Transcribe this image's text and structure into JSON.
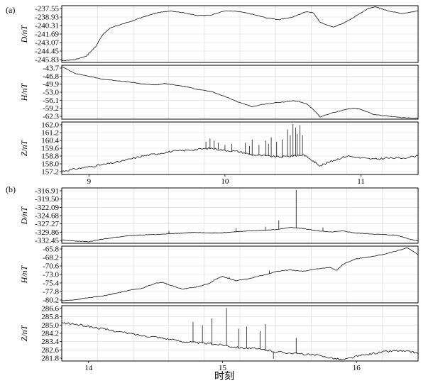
{
  "figure": {
    "x_axis_label": "时刻"
  },
  "chart_data": [
    {
      "type": "line",
      "group_label": "(a)",
      "x_ticks": [
        "9",
        "10",
        "11"
      ],
      "xlim": [
        8.8,
        11.42
      ],
      "panels": [
        {
          "ylabel": "D/nT",
          "y_ticks": [
            "-237.55",
            "-238.93",
            "-240.31",
            "-241.69",
            "-243.07",
            "-244.45",
            "-245.83"
          ],
          "ylim": [
            -245.83,
            -237.55
          ],
          "series": [
            {
              "x": [
                8.8,
                8.9,
                8.98,
                9.05,
                9.1,
                9.15,
                9.2,
                9.3,
                9.4,
                9.5,
                9.6,
                9.7,
                9.8,
                9.9,
                10.0,
                10.1,
                10.2,
                10.3,
                10.4,
                10.5,
                10.6,
                10.65,
                10.7,
                10.8,
                10.9,
                11.0,
                11.05,
                11.1,
                11.2,
                11.3,
                11.42
              ],
              "y": [
                -245.6,
                -245.4,
                -244.9,
                -243.5,
                -241.8,
                -240.9,
                -240.5,
                -239.9,
                -239.2,
                -238.6,
                -238.3,
                -238.6,
                -239.0,
                -238.9,
                -238.3,
                -238.4,
                -238.8,
                -239.3,
                -239.6,
                -239.2,
                -238.4,
                -238.6,
                -240.0,
                -240.7,
                -239.8,
                -238.6,
                -238.0,
                -237.7,
                -238.3,
                -238.7,
                -238.3
              ]
            }
          ]
        },
        {
          "ylabel": "H/nT",
          "y_ticks": [
            "-43.7",
            "-46.8",
            "-49.9",
            "-53.0",
            "-56.1",
            "-59.2",
            "-62.3"
          ],
          "ylim": [
            -62.3,
            -43.7
          ],
          "series": [
            {
              "x": [
                8.8,
                8.9,
                9.0,
                9.1,
                9.2,
                9.3,
                9.4,
                9.5,
                9.55,
                9.6,
                9.7,
                9.8,
                9.9,
                10.0,
                10.1,
                10.2,
                10.3,
                10.4,
                10.5,
                10.55,
                10.6,
                10.65,
                10.7,
                10.8,
                10.9,
                10.95,
                11.0,
                11.1,
                11.2,
                11.3,
                11.42
              ],
              "y": [
                -44.2,
                -46.5,
                -47.5,
                -48.5,
                -49.0,
                -49.5,
                -50.2,
                -50.5,
                -50.0,
                -50.3,
                -51.0,
                -52.0,
                -52.8,
                -54.5,
                -56.4,
                -58.0,
                -57.0,
                -56.5,
                -56.0,
                -56.3,
                -57.0,
                -59.0,
                -61.5,
                -60.0,
                -58.8,
                -58.5,
                -59.0,
                -60.8,
                -61.2,
                -61.8,
                -62.0
              ]
            }
          ]
        },
        {
          "ylabel": "Z/nT",
          "y_ticks": [
            "162.0",
            "161.2",
            "160.4",
            "159.6",
            "158.8",
            "158.0",
            "157.2"
          ],
          "ylim": [
            157.2,
            162.0
          ],
          "series": [
            {
              "x": [
                8.8,
                8.9,
                9.0,
                9.1,
                9.2,
                9.3,
                9.4,
                9.5,
                9.6,
                9.7,
                9.8,
                9.9,
                10.0,
                10.1,
                10.2,
                10.3,
                10.4,
                10.5,
                10.58,
                10.65,
                10.7,
                10.8,
                10.9,
                11.0,
                11.1,
                11.2,
                11.3,
                11.42
              ],
              "y": [
                157.5,
                157.7,
                157.9,
                158.1,
                158.3,
                158.6,
                158.9,
                159.1,
                159.3,
                159.4,
                159.5,
                159.6,
                159.4,
                159.3,
                159.0,
                158.9,
                158.8,
                158.9,
                159.0,
                158.4,
                158.0,
                158.5,
                158.9,
                158.7,
                158.6,
                158.7,
                158.7,
                158.9
              ]
            }
          ],
          "spikes": [
            [
              9.86,
              160.2
            ],
            [
              9.89,
              160.5
            ],
            [
              9.92,
              160.3
            ],
            [
              9.95,
              160.1
            ],
            [
              10.0,
              159.9
            ],
            [
              10.05,
              160.0
            ],
            [
              10.15,
              160.1
            ],
            [
              10.18,
              159.8
            ],
            [
              10.2,
              160.4
            ],
            [
              10.25,
              159.9
            ],
            [
              10.3,
              160.3
            ],
            [
              10.32,
              160.0
            ],
            [
              10.34,
              160.6
            ],
            [
              10.38,
              160.2
            ],
            [
              10.42,
              160.4
            ],
            [
              10.46,
              161.3
            ],
            [
              10.48,
              160.8
            ],
            [
              10.5,
              161.8
            ],
            [
              10.52,
              161.5
            ],
            [
              10.53,
              160.9
            ],
            [
              10.55,
              161.7
            ],
            [
              10.57,
              160.8
            ]
          ]
        }
      ]
    },
    {
      "type": "line",
      "group_label": "(b)",
      "x_ticks": [
        "14",
        "15",
        "16"
      ],
      "xlim": [
        13.8,
        16.46
      ],
      "panels": [
        {
          "ylabel": "D/nT",
          "y_ticks": [
            "-316.91",
            "-319.50",
            "-322.09",
            "-324.68",
            "-327.27",
            "-329.86",
            "-332.45"
          ],
          "ylim": [
            -332.45,
            -316.91
          ],
          "series": [
            {
              "x": [
                13.8,
                13.9,
                14.0,
                14.1,
                14.2,
                14.3,
                14.4,
                14.5,
                14.6,
                14.7,
                14.8,
                14.9,
                15.0,
                15.1,
                15.2,
                15.3,
                15.4,
                15.5,
                15.6,
                15.7,
                15.8,
                15.9,
                16.0,
                16.1,
                16.2,
                16.3,
                16.4,
                16.46
              ],
              "y": [
                -331.5,
                -331.8,
                -332.0,
                -331.3,
                -330.8,
                -330.3,
                -330.1,
                -330.0,
                -329.8,
                -329.6,
                -329.4,
                -329.6,
                -329.5,
                -329.2,
                -329.0,
                -328.8,
                -328.6,
                -328.0,
                -328.3,
                -328.9,
                -329.3,
                -329.0,
                -329.6,
                -329.8,
                -330.0,
                -330.2,
                -331.3,
                -331.8
              ]
            }
          ],
          "spikes": [
            [
              14.6,
              -329.0
            ],
            [
              15.1,
              -328.2
            ],
            [
              15.32,
              -327.8
            ],
            [
              15.42,
              -326.0
            ],
            [
              15.55,
              -317.5
            ],
            [
              15.75,
              -328.0
            ]
          ]
        },
        {
          "ylabel": "H/nT",
          "y_ticks": [
            "-65.8",
            "-68.2",
            "-70.6",
            "-73.0",
            "-75.4",
            "-77.8",
            "-80.2"
          ],
          "ylim": [
            -80.2,
            -65.8
          ],
          "series": [
            {
              "x": [
                13.8,
                13.9,
                14.0,
                14.1,
                14.2,
                14.3,
                14.4,
                14.5,
                14.55,
                14.6,
                14.7,
                14.8,
                14.9,
                14.95,
                15.0,
                15.1,
                15.2,
                15.3,
                15.4,
                15.5,
                15.6,
                15.7,
                15.8,
                15.85,
                15.9,
                16.0,
                16.1,
                16.2,
                16.3,
                16.38,
                16.46
              ],
              "y": [
                -79.7,
                -79.4,
                -78.9,
                -78.5,
                -77.8,
                -77.0,
                -76.5,
                -75.2,
                -75.0,
                -75.6,
                -76.7,
                -76.2,
                -75.3,
                -74.2,
                -73.5,
                -74.6,
                -74.0,
                -73.2,
                -72.3,
                -71.8,
                -72.2,
                -71.6,
                -71.2,
                -72.0,
                -70.4,
                -69.0,
                -68.5,
                -67.9,
                -67.0,
                -66.2,
                -68.0
              ]
            }
          ],
          "spikes": [
            [
              15.05,
              -73.6
            ],
            [
              15.35,
              -72.0
            ],
            [
              15.52,
              -72.0
            ]
          ]
        },
        {
          "ylabel": "Z/nT",
          "y_ticks": [
            "286.6",
            "285.8",
            "285.0",
            "284.2",
            "283.4",
            "282.6",
            "281.8"
          ],
          "ylim": [
            281.8,
            286.6
          ],
          "series": [
            {
              "x": [
                13.8,
                13.9,
                14.0,
                14.1,
                14.2,
                14.3,
                14.4,
                14.5,
                14.6,
                14.7,
                14.8,
                14.9,
                15.0,
                15.1,
                15.2,
                15.3,
                15.4,
                15.5,
                15.6,
                15.7,
                15.8,
                15.9,
                16.0,
                16.1,
                16.2,
                16.3,
                16.4,
                16.46
              ],
              "y": [
                285.1,
                285.0,
                284.8,
                284.6,
                284.4,
                284.2,
                284.0,
                283.9,
                283.7,
                283.5,
                283.4,
                283.3,
                283.2,
                283.0,
                282.9,
                282.8,
                282.6,
                282.5,
                282.4,
                282.3,
                282.1,
                281.9,
                282.2,
                282.4,
                282.6,
                282.7,
                282.6,
                282.5
              ]
            }
          ],
          "spikes": [
            [
              14.78,
              285.2
            ],
            [
              14.85,
              284.9
            ],
            [
              14.92,
              285.5
            ],
            [
              15.03,
              286.4
            ],
            [
              15.12,
              284.6
            ],
            [
              15.18,
              284.8
            ],
            [
              15.28,
              284.4
            ],
            [
              15.32,
              285.0
            ],
            [
              15.38,
              282.0
            ],
            [
              15.55,
              283.8
            ]
          ]
        }
      ]
    }
  ]
}
